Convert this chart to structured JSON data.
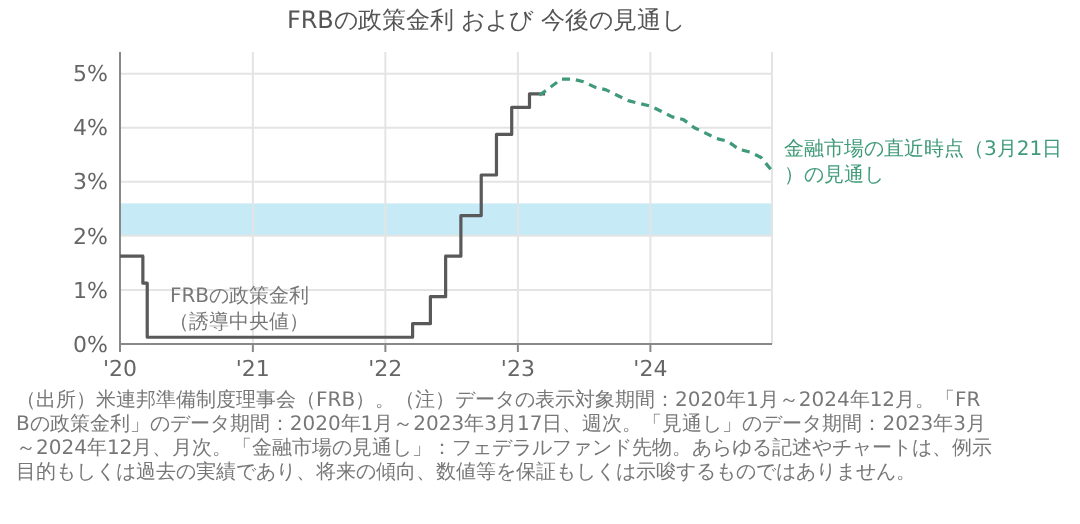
{
  "chart_data": {
    "type": "step",
    "title": "FRBの政策金利 および 今後の見通し",
    "xlim": [
      "2020-01",
      "2024-12"
    ],
    "xticks": [
      {
        "value": "2020-01",
        "label": "'20"
      },
      {
        "value": "2021-01",
        "label": "'21"
      },
      {
        "value": "2022-01",
        "label": "'22"
      },
      {
        "value": "2023-01",
        "label": "'23"
      },
      {
        "value": "2024-01",
        "label": "'24"
      }
    ],
    "ylim": [
      0,
      5.4
    ],
    "yticks": [
      {
        "value": 0,
        "label": "0%"
      },
      {
        "value": 1,
        "label": "1%"
      },
      {
        "value": 2,
        "label": "2%"
      },
      {
        "value": 3,
        "label": "3%"
      },
      {
        "value": 4,
        "label": "4%"
      },
      {
        "value": 5,
        "label": "5%"
      }
    ],
    "grid": true,
    "legend": false,
    "bands": [
      {
        "axis": "y",
        "from": 2,
        "to": 2.6,
        "color": "#c6eaf6"
      }
    ],
    "series": [
      {
        "name": "FRBの政策金利（誘導中央値）",
        "type": "step",
        "color": "#595959",
        "line_style": "solid",
        "x": [
          "2020-01-01",
          "2020-03-04",
          "2020-03-16",
          "2022-03-17",
          "2022-05-05",
          "2022-06-16",
          "2022-07-28",
          "2022-09-22",
          "2022-11-03",
          "2022-12-15",
          "2023-02-02",
          "2023-03-17"
        ],
        "values": [
          1.625,
          1.125,
          0.125,
          0.375,
          0.875,
          1.625,
          2.375,
          3.125,
          3.875,
          4.375,
          4.625,
          4.625
        ]
      },
      {
        "name": "金融市場の直近時点（3月21日）の見通し",
        "type": "line",
        "color": "#3f9a78",
        "line_style": "dashed",
        "x": [
          "2023-03",
          "2023-04",
          "2023-05",
          "2023-06",
          "2023-07",
          "2023-08",
          "2023-09",
          "2023-10",
          "2023-11",
          "2023-12",
          "2024-01",
          "2024-02",
          "2024-03",
          "2024-04",
          "2024-05",
          "2024-06",
          "2024-07",
          "2024-08",
          "2024-09",
          "2024-10",
          "2024-11",
          "2024-12"
        ],
        "values": [
          4.6,
          4.75,
          4.9,
          4.9,
          4.85,
          4.75,
          4.7,
          4.6,
          4.5,
          4.45,
          4.4,
          4.3,
          4.2,
          4.15,
          4.0,
          3.9,
          3.8,
          3.75,
          3.6,
          3.55,
          3.45,
          3.2
        ]
      }
    ],
    "annotations": [
      "（出所）米連邦準備制度理事会（FRB）。（注）データの表示対象期間：2020年1月～2024年12月。「FRBの政策金利」のデータ期間：2020年1月～2023年3月17日、週次。「見通し」のデータ期間：2023年3月～2024年12月、月次。「金融市場の見通し」：フェデラルファンド先物。あらゆる記述やチャートは、例示目的もしくは過去の実績であり、将来の傾向、数値等を保証もしくは示唆するものではありません。"
    ]
  }
}
